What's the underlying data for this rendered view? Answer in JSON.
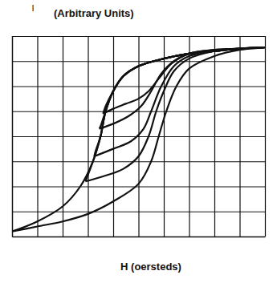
{
  "chart_data": {
    "type": "line",
    "ylabel": "I",
    "annotations": [
      "(Arbitrary Units)"
    ],
    "xlabel": "H (oersteds)",
    "xlim": [
      -5,
      5
    ],
    "ylim": [
      -4,
      4
    ],
    "xticks": [
      -5,
      -4,
      -3,
      -2,
      -1,
      0,
      1,
      2,
      3,
      4,
      5
    ],
    "yticks": [
      -4,
      -3,
      -2,
      -1,
      0,
      1,
      2,
      3,
      4
    ],
    "grid": true,
    "tick_labels": false,
    "color": "#111111",
    "series": [
      {
        "x": [
          -5,
          -4,
          -3,
          -2,
          -1,
          0,
          0.5,
          0.8,
          1.1,
          1.5,
          2,
          3,
          4,
          5,
          4,
          3,
          2,
          1,
          0,
          -0.6,
          -1,
          -1.3,
          -1.5,
          -1.8,
          -2.3,
          -3,
          -4,
          -5
        ],
        "values": [
          -3.8,
          -3.6,
          -3.4,
          -3.1,
          -2.6,
          -1.9,
          -1,
          0,
          1,
          2,
          2.7,
          3.2,
          3.45,
          3.55,
          3.5,
          3.4,
          3.3,
          3.1,
          2.8,
          2.4,
          1.8,
          1,
          0,
          -1,
          -2,
          -2.8,
          -3.4,
          -3.8
        ]
      },
      {
        "x": [
          -1.4,
          -1,
          -0.5,
          0,
          0.4,
          0.8,
          1.3,
          2,
          3,
          4,
          5,
          4,
          3,
          2,
          1,
          0,
          -0.6,
          -1,
          -1.3,
          -1.4
        ],
        "values": [
          0.9,
          1.1,
          1.3,
          1.5,
          1.8,
          2.3,
          2.9,
          3.3,
          3.45,
          3.5,
          3.55,
          3.5,
          3.4,
          3.3,
          3.1,
          2.8,
          2.4,
          1.8,
          1.2,
          0.9
        ]
      },
      {
        "x": [
          -1.55,
          -1,
          -0.4,
          0.1,
          0.5,
          0.9,
          1.4,
          2,
          3,
          4,
          5,
          4,
          3,
          2,
          1,
          0,
          -0.6,
          -1,
          -1.3,
          -1.5,
          -1.55
        ],
        "values": [
          0.3,
          0.5,
          0.8,
          1.2,
          1.8,
          2.5,
          3,
          3.3,
          3.45,
          3.5,
          3.55,
          3.5,
          3.4,
          3.3,
          3.1,
          2.8,
          2.4,
          1.8,
          1,
          0.4,
          0.3
        ]
      },
      {
        "x": [
          -1.75,
          -1,
          -0.3,
          0.2,
          0.5,
          0.9,
          1.4,
          2,
          3,
          4,
          5,
          4,
          3,
          2,
          1,
          0,
          -0.6,
          -1,
          -1.3,
          -1.5,
          -1.7,
          -1.75
        ],
        "values": [
          -0.8,
          -0.5,
          -0.2,
          0.3,
          1,
          2,
          2.8,
          3.2,
          3.4,
          3.5,
          3.55,
          3.5,
          3.4,
          3.3,
          3.1,
          2.8,
          2.4,
          1.8,
          1,
          0,
          -0.6,
          -0.8
        ]
      },
      {
        "x": [
          -2.1,
          -1.4,
          -0.6,
          0,
          0.4,
          0.7,
          1,
          1.4,
          2,
          3,
          4,
          5,
          4,
          3,
          2,
          1,
          0,
          -0.6,
          -1,
          -1.3,
          -1.5,
          -1.8,
          -2.1
        ],
        "values": [
          -1.8,
          -1.6,
          -1.3,
          -0.8,
          0,
          1,
          1.8,
          2.6,
          3.1,
          3.4,
          3.5,
          3.55,
          3.5,
          3.4,
          3.3,
          3.1,
          2.8,
          2.4,
          1.8,
          1,
          0,
          -1,
          -1.8
        ]
      }
    ]
  }
}
